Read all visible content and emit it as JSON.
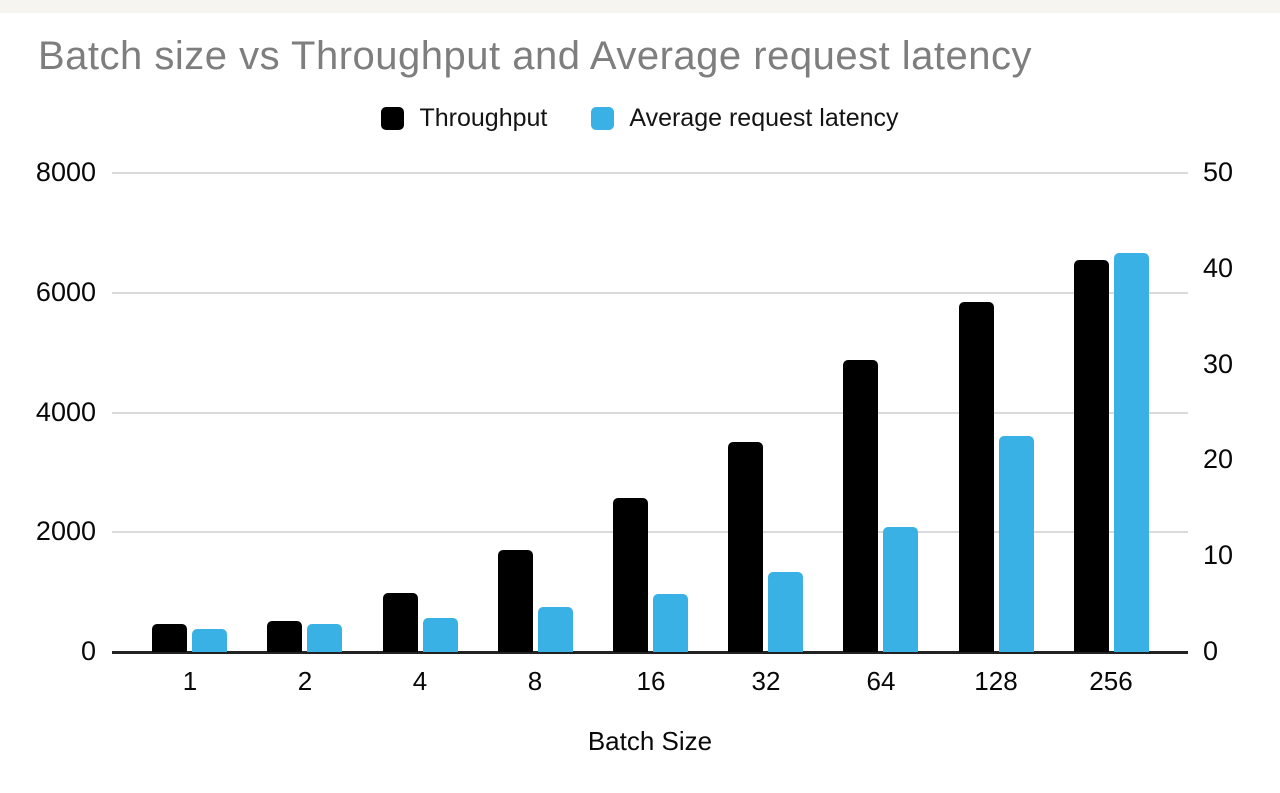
{
  "chart_data": {
    "type": "bar",
    "title": "Batch size vs Throughput and Average request latency",
    "xlabel": "Batch Size",
    "ylabel_left": "",
    "ylabel_right": "",
    "categories": [
      "1",
      "2",
      "4",
      "8",
      "16",
      "32",
      "64",
      "128",
      "256"
    ],
    "series": [
      {
        "name": "Throughput",
        "axis": "left",
        "color": "#000000",
        "values": [
          470,
          520,
          990,
          1710,
          2580,
          3500,
          4870,
          5840,
          6550
        ]
      },
      {
        "name": "Average request latency",
        "axis": "right",
        "color": "#3ab1e4",
        "values": [
          2.4,
          2.9,
          3.5,
          4.7,
          6.1,
          8.3,
          13.0,
          22.5,
          41.7
        ]
      }
    ],
    "left_axis": {
      "range": [
        0,
        8000
      ],
      "ticks": [
        0,
        2000,
        4000,
        6000,
        8000
      ]
    },
    "right_axis": {
      "range": [
        0,
        50
      ],
      "ticks": [
        0,
        10,
        20,
        30,
        40,
        50
      ]
    },
    "legend_position": "top",
    "grid": true
  },
  "colors": {
    "title_text": "#7e7e7e",
    "axis_text": "#080808",
    "gridline": "#dadada",
    "baseline": "#222222",
    "throughput_bar": "#000000",
    "latency_bar": "#3ab1e4",
    "top_strip": "#f6f5ef",
    "background": "#ffffff"
  }
}
